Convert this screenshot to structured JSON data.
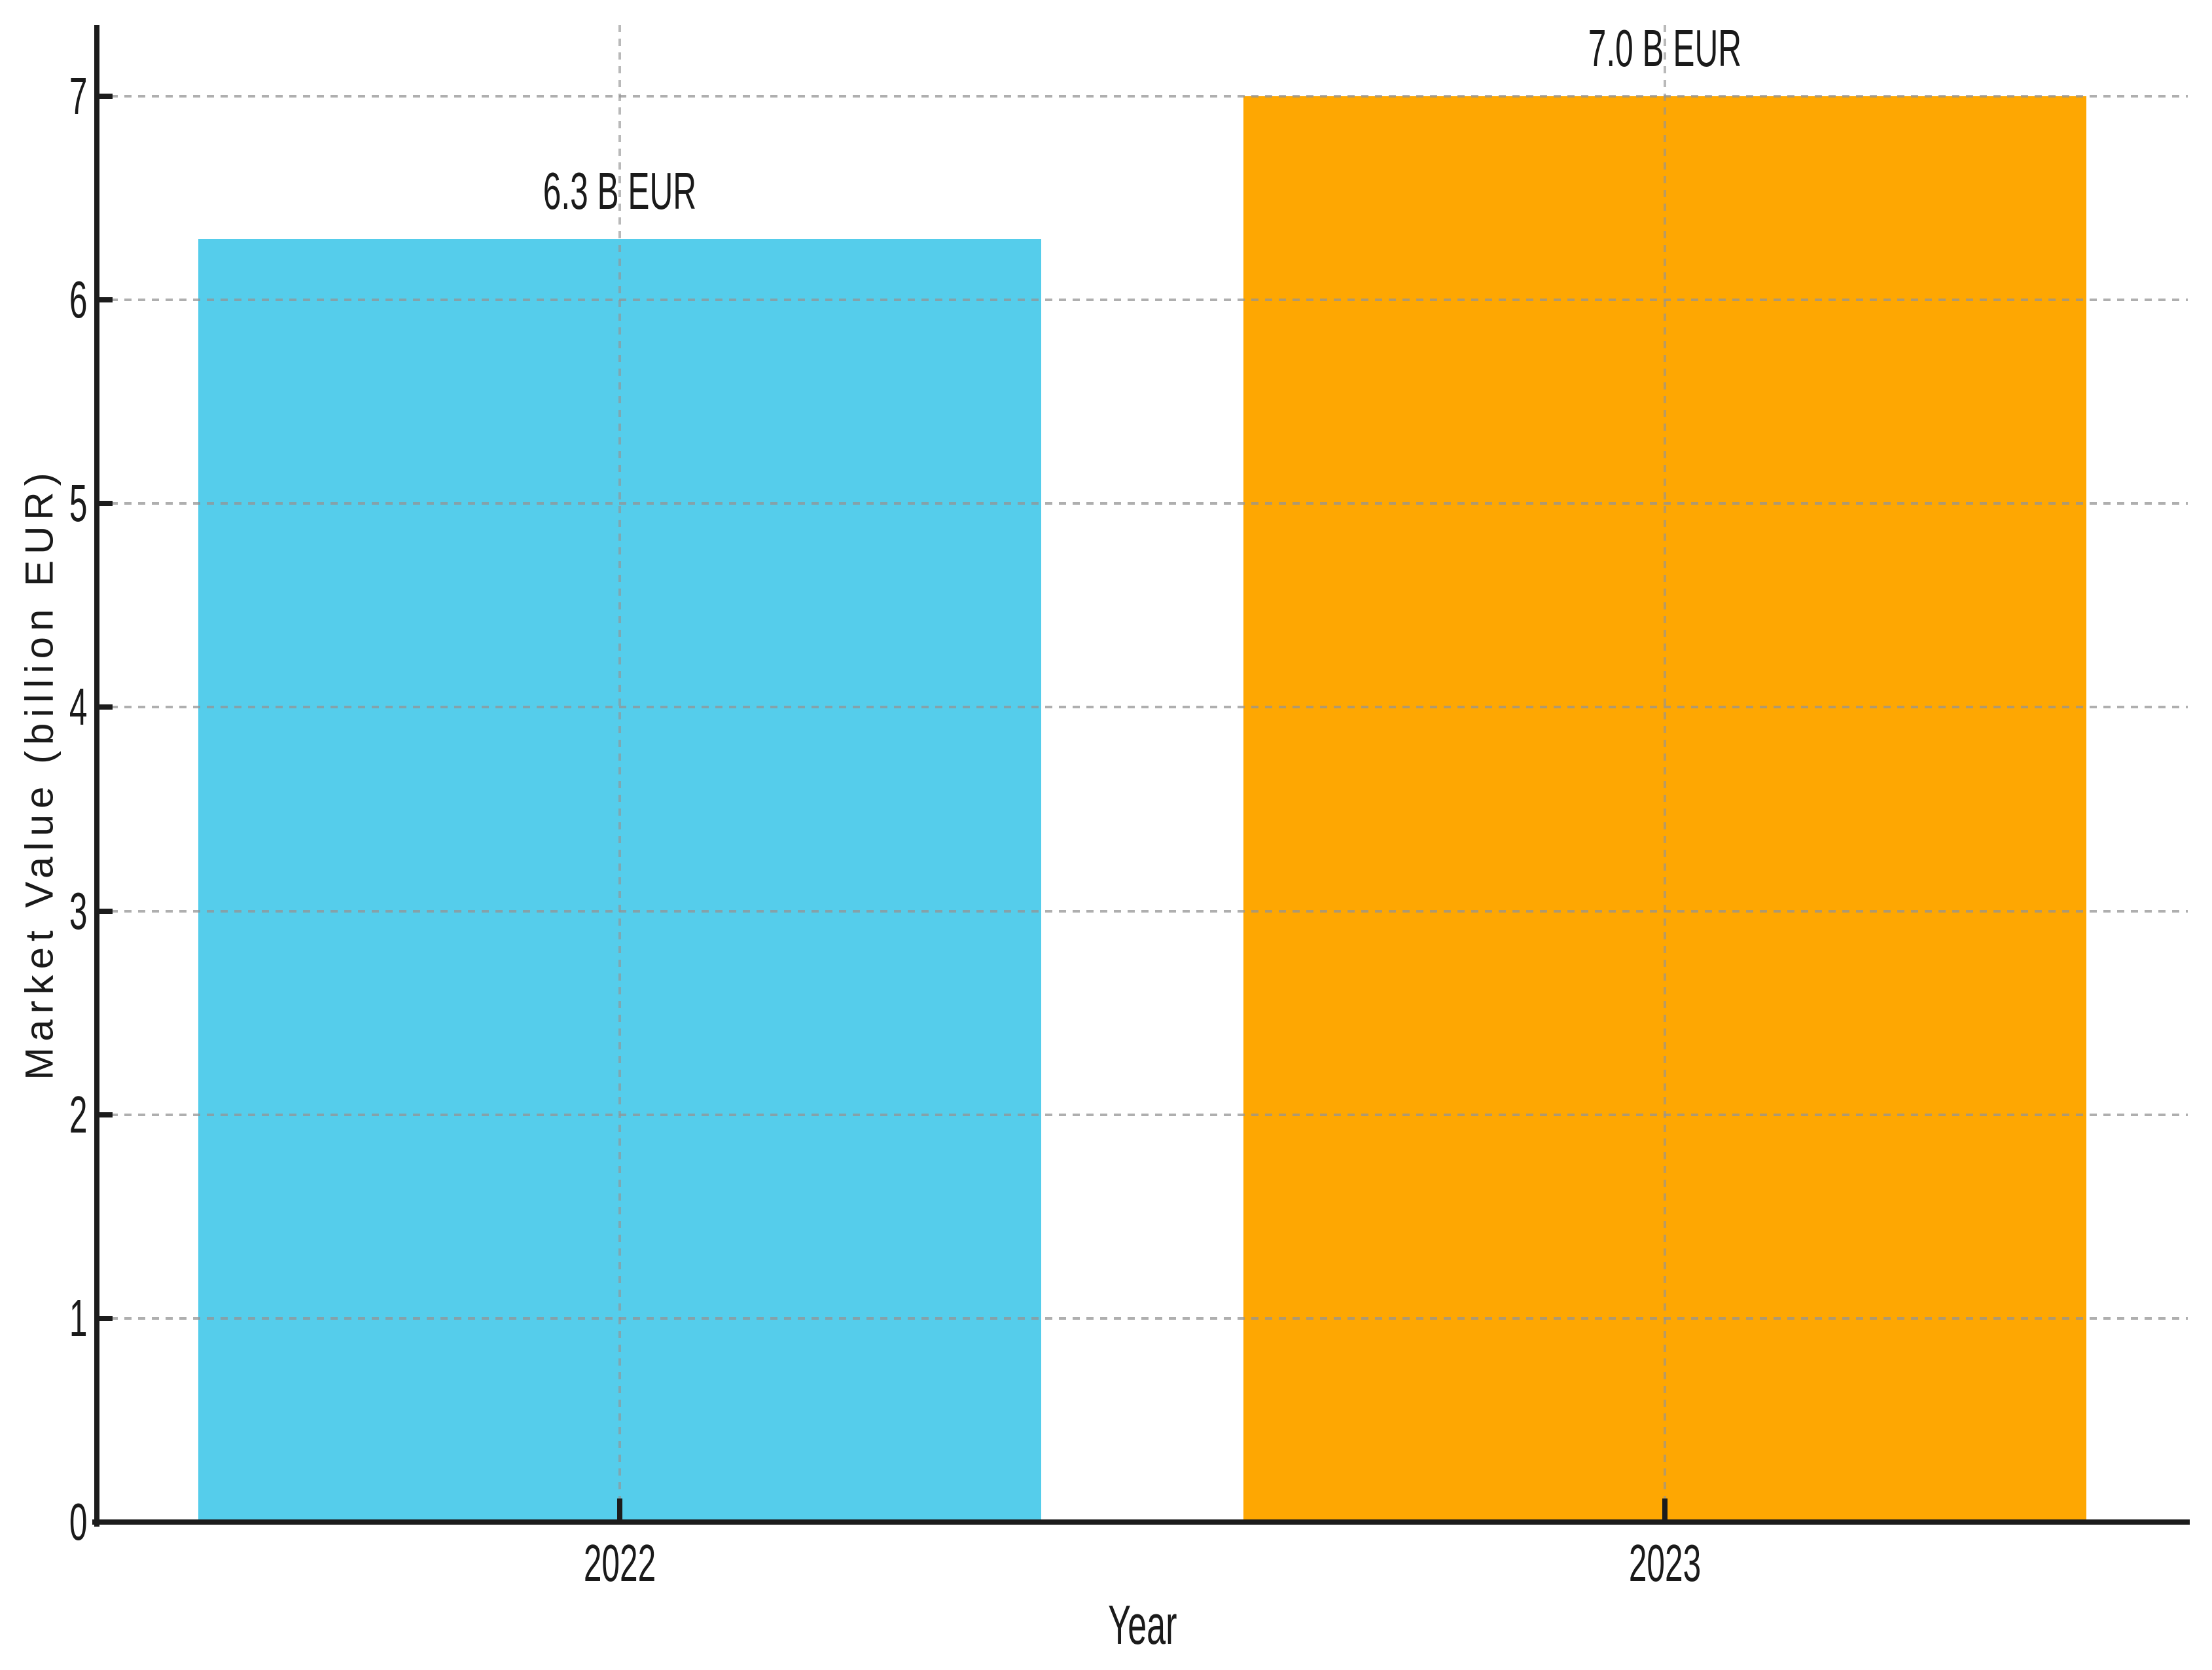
{
  "chart_data": {
    "type": "bar",
    "categories": [
      "2022",
      "2023"
    ],
    "values": [
      6.3,
      7.0
    ],
    "bar_labels": [
      "6.3 B EUR",
      "7.0 B EUR"
    ],
    "bar_colors": [
      "#55CDEB",
      "#FEA702"
    ],
    "title": "",
    "xlabel": "Year",
    "ylabel": "Market Value (billion EUR)",
    "yticks": [
      0,
      1,
      2,
      3,
      4,
      5,
      6,
      7
    ],
    "ylim": [
      0,
      7.35
    ],
    "bar_width_fraction": 0.403,
    "grid": "dashed",
    "grid_color": "#b0b0b0",
    "axis_color": "#1c1c1c",
    "text_color": "#1a1a1a",
    "background": "#ffffff",
    "legend": "none"
  }
}
